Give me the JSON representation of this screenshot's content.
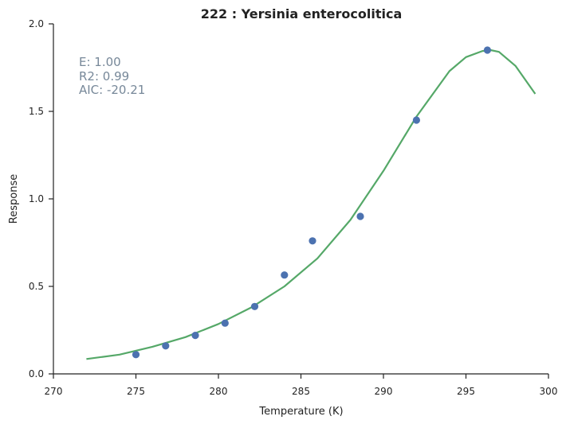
{
  "chart_data": {
    "type": "scatter",
    "title": "222 : Yersinia enterocolitica",
    "xlabel": "Temperature (K)",
    "ylabel": "Response",
    "xlim": [
      270,
      300
    ],
    "ylim": [
      0.0,
      2.0
    ],
    "xticks": [
      "270",
      "275",
      "280",
      "285",
      "290",
      "295",
      "300"
    ],
    "yticks": [
      "0.0",
      "0.5",
      "1.0",
      "1.5",
      "2.0"
    ],
    "grid": false,
    "annotations": [
      "E:  1.00",
      "R2:  0.99",
      "AIC: -20.21"
    ],
    "series": [
      {
        "kind": "points",
        "color": "#4c72b0",
        "x": [
          275.0,
          276.8,
          278.6,
          280.4,
          282.2,
          284.0,
          285.7,
          288.6,
          292.0,
          296.3
        ],
        "y": [
          0.11,
          0.16,
          0.22,
          0.29,
          0.385,
          0.565,
          0.76,
          0.9,
          1.45,
          1.85
        ]
      },
      {
        "kind": "line",
        "color": "#55a868",
        "x": [
          272.0,
          274.0,
          276.0,
          278.0,
          280.0,
          282.0,
          284.0,
          286.0,
          288.0,
          290.0,
          292.0,
          294.0,
          295.0,
          296.0,
          296.5,
          297.0,
          298.0,
          299.2
        ],
        "y": [
          0.085,
          0.11,
          0.155,
          0.21,
          0.285,
          0.38,
          0.5,
          0.66,
          0.88,
          1.16,
          1.47,
          1.73,
          1.81,
          1.845,
          1.85,
          1.84,
          1.76,
          1.6
        ]
      }
    ]
  }
}
